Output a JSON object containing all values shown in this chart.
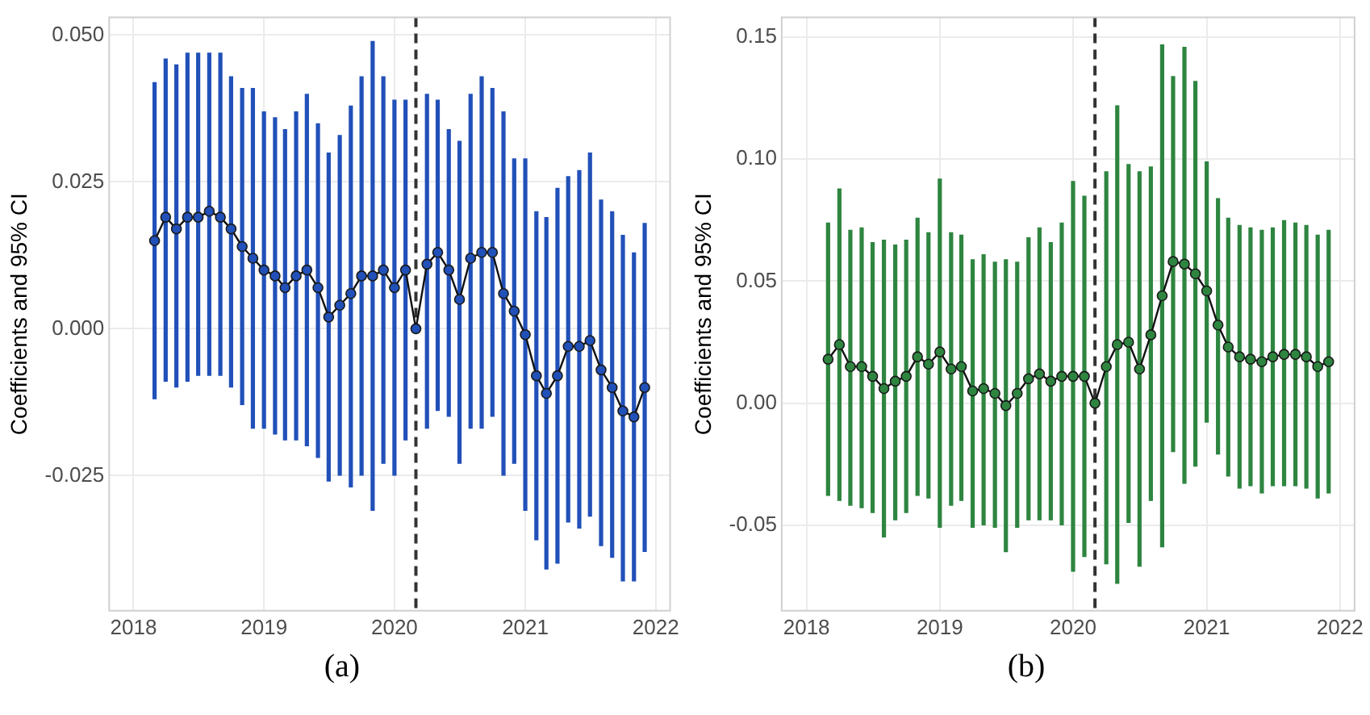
{
  "chart_data": [
    {
      "type": "line",
      "ylabel": "Coefficients and 95% CI",
      "annotations": [
        "(a)"
      ],
      "grid": true,
      "legend": false,
      "marker": "circle",
      "line_style": "solid",
      "x": [
        "2018-03",
        "2018-04",
        "2018-05",
        "2018-06",
        "2018-07",
        "2018-08",
        "2018-09",
        "2018-10",
        "2018-11",
        "2018-12",
        "2019-01",
        "2019-02",
        "2019-03",
        "2019-04",
        "2019-05",
        "2019-06",
        "2019-07",
        "2019-08",
        "2019-09",
        "2019-10",
        "2019-11",
        "2019-12",
        "2020-01",
        "2020-02",
        "2020-03",
        "2020-04",
        "2020-05",
        "2020-06",
        "2020-07",
        "2020-08",
        "2020-09",
        "2020-10",
        "2020-11",
        "2020-12",
        "2021-01",
        "2021-02",
        "2021-03",
        "2021-04",
        "2021-05",
        "2021-06",
        "2021-07",
        "2021-08",
        "2021-09",
        "2021-10",
        "2021-11",
        "2021-12"
      ],
      "xlim": [
        "2017-10-25",
        "2022-02-10"
      ],
      "xticks": [
        "2018",
        "2019",
        "2020",
        "2021",
        "2022"
      ],
      "ylim": [
        -0.048,
        0.053
      ],
      "yticks": [
        {
          "value": 0.05,
          "label": "0.050"
        },
        0.025,
        {
          "value": 0,
          "label": "0.000"
        },
        -0.025
      ],
      "ref_lines": [
        {
          "axis": "x",
          "value": "2020-03",
          "color": "#333333",
          "line_style": "dashed"
        }
      ],
      "series": [
        {
          "color": "#2150b8",
          "values": [
            0.015,
            0.019,
            0.017,
            0.019,
            0.019,
            0.02,
            0.019,
            0.017,
            0.014,
            0.012,
            0.01,
            0.009,
            0.007,
            0.009,
            0.01,
            0.007,
            0.002,
            0.004,
            0.006,
            0.009,
            0.009,
            0.01,
            0.007,
            0.01,
            0.0,
            0.011,
            0.013,
            0.01,
            0.005,
            0.012,
            0.013,
            0.013,
            0.006,
            0.003,
            -0.001,
            -0.008,
            -0.011,
            -0.008,
            -0.003,
            -0.003,
            -0.002,
            -0.007,
            -0.01,
            -0.014,
            -0.015,
            -0.01
          ],
          "errors": [
            [
              -0.012,
              0.042
            ],
            [
              -0.009,
              0.046
            ],
            [
              -0.01,
              0.045
            ],
            [
              -0.009,
              0.047
            ],
            [
              -0.008,
              0.047
            ],
            [
              -0.008,
              0.047
            ],
            [
              -0.008,
              0.047
            ],
            [
              -0.01,
              0.043
            ],
            [
              -0.013,
              0.041
            ],
            [
              -0.017,
              0.041
            ],
            [
              -0.017,
              0.037
            ],
            [
              -0.018,
              0.036
            ],
            [
              -0.019,
              0.034
            ],
            [
              -0.019,
              0.037
            ],
            [
              -0.02,
              0.04
            ],
            [
              -0.022,
              0.035
            ],
            [
              -0.026,
              0.03
            ],
            [
              -0.025,
              0.033
            ],
            [
              -0.027,
              0.038
            ],
            [
              -0.025,
              0.043
            ],
            [
              -0.031,
              0.049
            ],
            [
              -0.023,
              0.043
            ],
            [
              -0.025,
              0.039
            ],
            [
              -0.019,
              0.039
            ],
            null,
            [
              -0.017,
              0.04
            ],
            [
              -0.014,
              0.039
            ],
            [
              -0.015,
              0.034
            ],
            [
              -0.023,
              0.032
            ],
            [
              -0.017,
              0.04
            ],
            [
              -0.017,
              0.043
            ],
            [
              -0.015,
              0.041
            ],
            [
              -0.025,
              0.037
            ],
            [
              -0.023,
              0.029
            ],
            [
              -0.031,
              0.029
            ],
            [
              -0.036,
              0.02
            ],
            [
              -0.041,
              0.019
            ],
            [
              -0.04,
              0.024
            ],
            [
              -0.033,
              0.026
            ],
            [
              -0.034,
              0.027
            ],
            [
              -0.032,
              0.03
            ],
            [
              -0.037,
              0.022
            ],
            [
              -0.039,
              0.02
            ],
            [
              -0.043,
              0.016
            ],
            [
              -0.043,
              0.013
            ],
            [
              -0.038,
              0.018
            ]
          ]
        }
      ]
    },
    {
      "type": "line",
      "ylabel": "Coefficients and 95% CI",
      "annotations": [
        "(b)"
      ],
      "grid": true,
      "legend": false,
      "marker": "circle",
      "line_style": "solid",
      "x": [
        "2018-03",
        "2018-04",
        "2018-05",
        "2018-06",
        "2018-07",
        "2018-08",
        "2018-09",
        "2018-10",
        "2018-11",
        "2018-12",
        "2019-01",
        "2019-02",
        "2019-03",
        "2019-04",
        "2019-05",
        "2019-06",
        "2019-07",
        "2019-08",
        "2019-09",
        "2019-10",
        "2019-11",
        "2019-12",
        "2020-01",
        "2020-02",
        "2020-03",
        "2020-04",
        "2020-05",
        "2020-06",
        "2020-07",
        "2020-08",
        "2020-09",
        "2020-10",
        "2020-11",
        "2020-12",
        "2021-01",
        "2021-02",
        "2021-03",
        "2021-04",
        "2021-05",
        "2021-06",
        "2021-07",
        "2021-08",
        "2021-09",
        "2021-10",
        "2021-11",
        "2021-12"
      ],
      "xlim": [
        "2017-10-25",
        "2022-02-10"
      ],
      "xticks": [
        "2018",
        "2019",
        "2020",
        "2021",
        "2022"
      ],
      "ylim": [
        -0.085,
        0.158
      ],
      "yticks": [
        0.15,
        {
          "value": 0.1,
          "label": "0.10"
        },
        0.05,
        {
          "value": 0,
          "label": "0.00"
        },
        -0.05
      ],
      "ref_lines": [
        {
          "axis": "x",
          "value": "2020-03",
          "color": "#333333",
          "line_style": "dashed"
        }
      ],
      "series": [
        {
          "color": "#2e8540",
          "values": [
            0.018,
            0.024,
            0.015,
            0.015,
            0.011,
            0.006,
            0.009,
            0.011,
            0.019,
            0.016,
            0.021,
            0.014,
            0.015,
            0.005,
            0.006,
            0.004,
            -0.001,
            0.004,
            0.01,
            0.012,
            0.009,
            0.011,
            0.011,
            0.011,
            0.0,
            0.015,
            0.024,
            0.025,
            0.014,
            0.028,
            0.044,
            0.058,
            0.057,
            0.053,
            0.046,
            0.032,
            0.023,
            0.019,
            0.018,
            0.017,
            0.019,
            0.02,
            0.02,
            0.019,
            0.015,
            0.017
          ],
          "errors": [
            [
              -0.038,
              0.074
            ],
            [
              -0.04,
              0.088
            ],
            [
              -0.042,
              0.071
            ],
            [
              -0.043,
              0.072
            ],
            [
              -0.045,
              0.066
            ],
            [
              -0.055,
              0.067
            ],
            [
              -0.048,
              0.065
            ],
            [
              -0.045,
              0.067
            ],
            [
              -0.038,
              0.076
            ],
            [
              -0.039,
              0.07
            ],
            [
              -0.051,
              0.092
            ],
            [
              -0.042,
              0.07
            ],
            [
              -0.04,
              0.069
            ],
            [
              -0.051,
              0.059
            ],
            [
              -0.05,
              0.061
            ],
            [
              -0.051,
              0.058
            ],
            [
              -0.061,
              0.059
            ],
            [
              -0.051,
              0.058
            ],
            [
              -0.048,
              0.068
            ],
            [
              -0.048,
              0.072
            ],
            [
              -0.048,
              0.066
            ],
            [
              -0.05,
              0.074
            ],
            [
              -0.069,
              0.091
            ],
            [
              -0.063,
              0.085
            ],
            null,
            [
              -0.066,
              0.095
            ],
            [
              -0.074,
              0.122
            ],
            [
              -0.049,
              0.098
            ],
            [
              -0.067,
              0.095
            ],
            [
              -0.04,
              0.097
            ],
            [
              -0.059,
              0.147
            ],
            [
              -0.02,
              0.134
            ],
            [
              -0.033,
              0.146
            ],
            [
              -0.026,
              0.132
            ],
            [
              -0.008,
              0.099
            ],
            [
              -0.021,
              0.084
            ],
            [
              -0.03,
              0.076
            ],
            [
              -0.035,
              0.073
            ],
            [
              -0.034,
              0.072
            ],
            [
              -0.037,
              0.071
            ],
            [
              -0.034,
              0.072
            ],
            [
              -0.034,
              0.075
            ],
            [
              -0.034,
              0.074
            ],
            [
              -0.035,
              0.073
            ],
            [
              -0.039,
              0.069
            ],
            [
              -0.037,
              0.071
            ]
          ]
        }
      ]
    }
  ]
}
